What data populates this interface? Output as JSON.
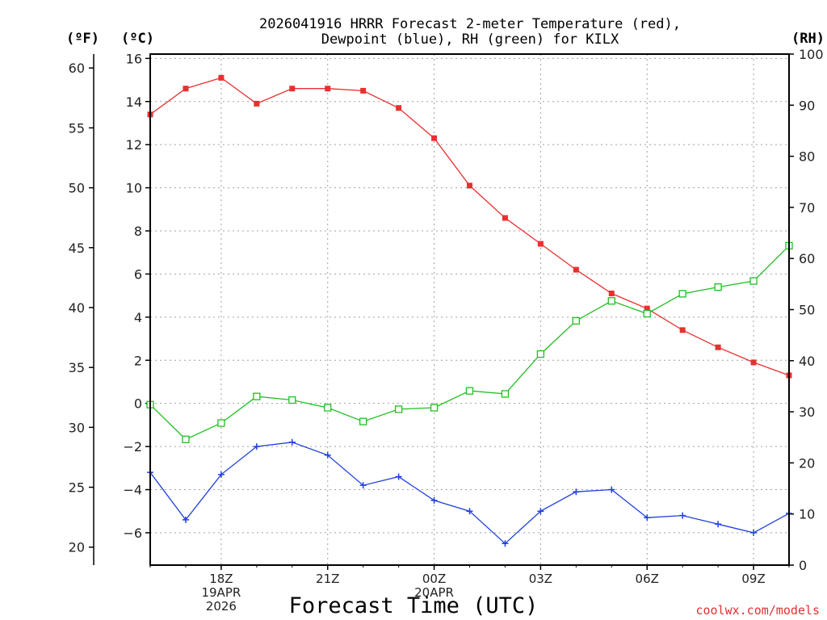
{
  "chart_data": {
    "type": "line",
    "title_line1": "2026041916 HRRR Forecast 2-meter Temperature (red),",
    "title_line2": "Dewpoint (blue), RH (green) for KILX",
    "xlabel": "Forecast Time (UTC)",
    "watermark": "coolwx.com/models",
    "unit_f": "(ºF)",
    "unit_c": "(ºC)",
    "unit_rh": "(RH)",
    "x_hours": [
      16,
      17,
      18,
      19,
      20,
      21,
      22,
      23,
      24,
      25,
      26,
      27,
      28,
      29,
      30,
      31,
      32,
      33,
      34
    ],
    "xlim": [
      16,
      34
    ],
    "x_ticks": [
      {
        "hour": 18,
        "lines": [
          "18Z",
          "19APR",
          "2026"
        ]
      },
      {
        "hour": 21,
        "lines": [
          "21Z"
        ]
      },
      {
        "hour": 24,
        "lines": [
          "00Z",
          "20APR"
        ]
      },
      {
        "hour": 27,
        "lines": [
          "03Z"
        ]
      },
      {
        "hour": 30,
        "lines": [
          "06Z"
        ]
      },
      {
        "hour": 33,
        "lines": [
          "09Z"
        ]
      }
    ],
    "ylim_c": [
      -7.5,
      16.2
    ],
    "y_ticks_c": [
      "16",
      "14",
      "12",
      "10",
      "8",
      "6",
      "4",
      "2",
      "0",
      "−2",
      "−4",
      "−6"
    ],
    "y_ticks_f": [
      "60",
      "55",
      "50",
      "45",
      "40",
      "35",
      "30",
      "25",
      "20"
    ],
    "ylim_rh": [
      0,
      100
    ],
    "y_ticks_rh": [
      "100",
      "90",
      "80",
      "70",
      "60",
      "50",
      "40",
      "30",
      "20",
      "10",
      "0"
    ],
    "series": [
      {
        "name": "Temperature",
        "color": "#e83030",
        "marker": "filled-square",
        "axis": "c",
        "values": [
          13.4,
          14.6,
          15.1,
          13.9,
          14.6,
          14.6,
          14.5,
          13.7,
          12.3,
          10.1,
          8.6,
          7.4,
          6.2,
          5.1,
          4.4,
          3.4,
          2.6,
          1.9,
          1.3
        ]
      },
      {
        "name": "Dewpoint",
        "color": "#2040e0",
        "marker": "plus",
        "axis": "c",
        "values": [
          -3.2,
          -5.4,
          -3.3,
          -2.0,
          -1.8,
          -2.4,
          -3.8,
          -3.4,
          -4.5,
          -5.0,
          -6.5,
          -5.0,
          -4.1,
          -4.0,
          -5.3,
          -5.2,
          -5.6,
          -6.0,
          -5.1
        ]
      },
      {
        "name": "RH",
        "color": "#20c020",
        "marker": "open-square",
        "axis": "rh",
        "values": [
          31.4,
          24.6,
          27.8,
          33.0,
          32.3,
          30.8,
          28.1,
          30.5,
          30.8,
          34.1,
          33.5,
          41.3,
          47.8,
          51.7,
          49.2,
          53.1,
          54.4,
          55.6,
          62.5
        ]
      }
    ]
  }
}
